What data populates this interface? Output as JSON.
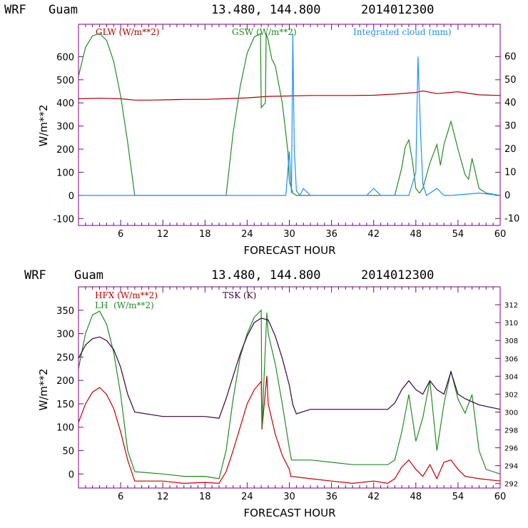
{
  "colors": {
    "glw": "#b00000",
    "gsw": "#228b22",
    "cloud": "#1e90ff",
    "hfx": "#c00000",
    "lh": "#228b22",
    "tsk": "#3a003a",
    "frame": "#800080"
  },
  "panels": [
    {
      "header": {
        "model": "WRF",
        "location": "Guam",
        "coords": "13.480, 144.800",
        "date": "2014012300"
      },
      "legend": {
        "glw": "GLW (W/m**2)",
        "gsw": "GSW (W/m**2)",
        "cloud": "Integrated cloud (mm)"
      },
      "ylabel": "W/m**2",
      "xlabel": "FORECAST HOUR",
      "xticks": [
        "6",
        "12",
        "18",
        "24",
        "30",
        "36",
        "42",
        "48",
        "54",
        "60"
      ],
      "yticks_left": [
        "-100",
        "0",
        "100",
        "200",
        "300",
        "400",
        "500",
        "600"
      ],
      "yticks_right": [
        "-10",
        "0",
        "10",
        "20",
        "30",
        "40",
        "50",
        "60"
      ]
    },
    {
      "header": {
        "model": "WRF",
        "location": "Guam",
        "coords": "13.480, 144.800",
        "date": "2014012300"
      },
      "legend": {
        "hfx": "HFX (W/m**2)",
        "lh": "LH  (W/m**2)",
        "tsk": "TSK (K)"
      },
      "ylabel": "W/m**2",
      "xlabel": "FORECAST HOUR",
      "xticks": [
        "6",
        "12",
        "18",
        "24",
        "30",
        "36",
        "42",
        "48",
        "54",
        "60"
      ],
      "yticks_left": [
        "0",
        "50",
        "100",
        "150",
        "200",
        "250",
        "300",
        "350"
      ],
      "yticks_right": [
        "292",
        "294",
        "296",
        "298",
        "300",
        "302",
        "304",
        "306",
        "308",
        "310",
        "312"
      ]
    }
  ],
  "chart_data": [
    {
      "type": "line",
      "title": "WRF Guam 13.480, 144.800 2014012300",
      "xlabel": "FORECAST HOUR",
      "ylabel": "W/m**2",
      "xlim": [
        0,
        60
      ],
      "ylim": [
        -130,
        740
      ],
      "ylim_right": [
        -13,
        74
      ],
      "series": [
        {
          "name": "GLW (W/m**2)",
          "axis": "left",
          "x": [
            0,
            3,
            6,
            8,
            10,
            12,
            15,
            18,
            21,
            24,
            27,
            30,
            33,
            36,
            39,
            42,
            45,
            48,
            49,
            51,
            54,
            57,
            60
          ],
          "y": [
            418,
            420,
            418,
            412,
            412,
            413,
            415,
            415,
            418,
            422,
            428,
            430,
            432,
            432,
            432,
            433,
            438,
            445,
            452,
            440,
            448,
            435,
            432
          ]
        },
        {
          "name": "GSW (W/m**2)",
          "axis": "left",
          "x": [
            0,
            1,
            2,
            3,
            4,
            5,
            6,
            7,
            8,
            21,
            22,
            23,
            24,
            25,
            25.9,
            26,
            26.6,
            26.7,
            27,
            27.5,
            28,
            29,
            29.8,
            30,
            30.5,
            31,
            45,
            46,
            46.5,
            47,
            47.5,
            48,
            48.5,
            49,
            50,
            51,
            51.5,
            52,
            53,
            54,
            55,
            55.5,
            56,
            57,
            58,
            60
          ],
          "y": [
            515,
            640,
            690,
            700,
            670,
            580,
            430,
            230,
            0,
            0,
            270,
            470,
            615,
            685,
            700,
            380,
            400,
            700,
            670,
            590,
            560,
            400,
            190,
            60,
            10,
            0,
            0,
            120,
            210,
            240,
            150,
            30,
            10,
            30,
            140,
            220,
            130,
            220,
            320,
            200,
            90,
            70,
            160,
            30,
            10,
            0
          ]
        },
        {
          "name": "Integrated cloud (mm)",
          "axis": "right",
          "x": [
            0,
            29.5,
            30,
            30.3,
            30.5,
            30.7,
            31,
            31.5,
            32,
            33,
            41,
            42,
            43,
            47,
            48,
            48.3,
            48.7,
            49,
            49.5,
            50,
            51,
            52,
            53,
            57,
            60
          ],
          "y": [
            0,
            0,
            19,
            1,
            70,
            20,
            2,
            0,
            3,
            0,
            0,
            3,
            0,
            0,
            10,
            60,
            25,
            5,
            0,
            1,
            3,
            0,
            0,
            1,
            0
          ]
        }
      ]
    },
    {
      "type": "line",
      "title": "WRF Guam 13.480, 144.800 2014012300",
      "xlabel": "FORECAST HOUR",
      "ylabel": "W/m**2",
      "xlim": [
        0,
        60
      ],
      "ylim": [
        -30,
        400
      ],
      "ylim_right": [
        291.5,
        314
      ],
      "series": [
        {
          "name": "HFX (W/m**2)",
          "axis": "left",
          "x": [
            0,
            1,
            2,
            3,
            4,
            5,
            6,
            7,
            8,
            12,
            15,
            18,
            20,
            21,
            22,
            23,
            24,
            25,
            26,
            26.1,
            26.8,
            27,
            28,
            29,
            30,
            30.2,
            33,
            36,
            39,
            42,
            44,
            45,
            46,
            47,
            48,
            49,
            50,
            51,
            52,
            53,
            54,
            55,
            57,
            60
          ],
          "y": [
            110,
            150,
            175,
            185,
            170,
            140,
            90,
            30,
            -15,
            -15,
            -20,
            -18,
            -20,
            5,
            50,
            100,
            150,
            180,
            198,
            95,
            210,
            150,
            85,
            40,
            10,
            -5,
            -10,
            -15,
            -20,
            -15,
            -20,
            -10,
            15,
            30,
            10,
            -5,
            20,
            -10,
            25,
            30,
            10,
            -5,
            -10,
            -15
          ]
        },
        {
          "name": "LH (W/m**2)",
          "axis": "left",
          "x": [
            0,
            1,
            2,
            3,
            4,
            5,
            6,
            7,
            8,
            12,
            15,
            18,
            20,
            21,
            22,
            23,
            24,
            25,
            26,
            26.1,
            26.8,
            27,
            28,
            29,
            30,
            30.3,
            33,
            36,
            39,
            42,
            44,
            45,
            46,
            47,
            48,
            49,
            50,
            51,
            52,
            53,
            54,
            55,
            56,
            57,
            58,
            60
          ],
          "y": [
            225,
            300,
            340,
            348,
            320,
            260,
            170,
            50,
            5,
            0,
            -5,
            -5,
            -10,
            50,
            160,
            250,
            300,
            335,
            350,
            100,
            345,
            300,
            235,
            150,
            55,
            30,
            30,
            25,
            20,
            20,
            20,
            30,
            90,
            170,
            70,
            120,
            200,
            50,
            150,
            220,
            160,
            130,
            170,
            50,
            10,
            0
          ]
        },
        {
          "name": "TSK (K)",
          "axis": "right",
          "x": [
            0,
            1,
            2,
            3,
            4,
            5,
            6,
            7,
            8,
            12,
            15,
            18,
            20,
            21,
            22,
            23,
            24,
            25,
            26,
            27,
            28,
            29,
            30,
            30.5,
            31,
            33,
            36,
            39,
            42,
            44,
            45,
            46,
            47,
            48,
            49,
            50,
            51,
            52,
            53,
            54,
            55,
            57,
            60
          ],
          "y": [
            306,
            307.5,
            308.2,
            308.4,
            308,
            307,
            305,
            302,
            300,
            299.5,
            299.5,
            299.5,
            299.3,
            301.5,
            304,
            306.5,
            308.5,
            310,
            310.5,
            310.3,
            308.5,
            306,
            303,
            300.8,
            299.8,
            300.3,
            300.3,
            300.3,
            300.3,
            300.3,
            301,
            302.5,
            303.5,
            302.5,
            302,
            303.5,
            302.5,
            302,
            304.5,
            302,
            301.5,
            300.8,
            300.3
          ]
        }
      ]
    }
  ]
}
